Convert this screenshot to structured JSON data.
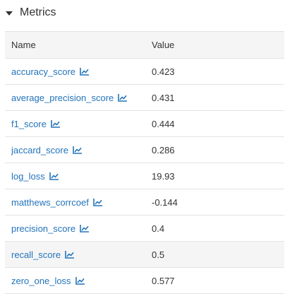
{
  "section": {
    "title": "Metrics",
    "collapse_icon": "caret-down-icon"
  },
  "table": {
    "headers": {
      "name": "Name",
      "value": "Value"
    },
    "rows": [
      {
        "name": "accuracy_score",
        "value": "0.423",
        "icon": "line-chart-icon"
      },
      {
        "name": "average_precision_score",
        "value": "0.431",
        "icon": "line-chart-icon"
      },
      {
        "name": "f1_score",
        "value": "0.444",
        "icon": "line-chart-icon"
      },
      {
        "name": "jaccard_score",
        "value": "0.286",
        "icon": "line-chart-icon"
      },
      {
        "name": "log_loss",
        "value": "19.93",
        "icon": "line-chart-icon"
      },
      {
        "name": "matthews_corrcoef",
        "value": "-0.144",
        "icon": "line-chart-icon"
      },
      {
        "name": "precision_score",
        "value": "0.4",
        "icon": "line-chart-icon"
      },
      {
        "name": "recall_score",
        "value": "0.5",
        "icon": "line-chart-icon",
        "hovered": true
      },
      {
        "name": "zero_one_loss",
        "value": "0.577",
        "icon": "line-chart-icon"
      }
    ]
  },
  "colors": {
    "link": "#2374bb",
    "header_bg": "#f5f5f5",
    "border": "#e3e3e3",
    "text": "#333333"
  }
}
